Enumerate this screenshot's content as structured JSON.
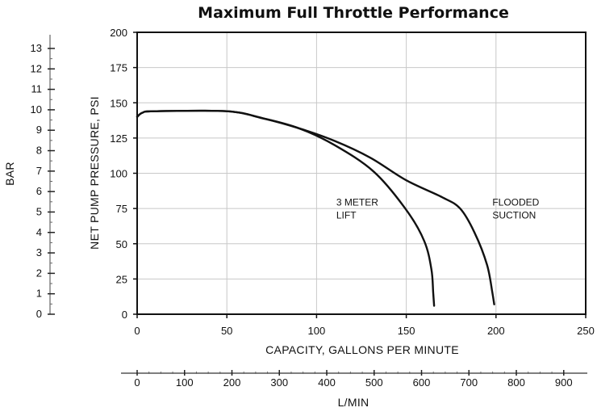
{
  "chart_data": {
    "type": "line",
    "title": "Maximum Full Throttle Performance",
    "xlabel": "CAPACITY, GALLONS PER MINUTE",
    "ylabel": "NET PUMP PRESSURE, PSI",
    "xlim": [
      0,
      250
    ],
    "ylim": [
      0,
      200
    ],
    "x_ticks": [
      0,
      50,
      100,
      150,
      200,
      250
    ],
    "y_ticks": [
      0,
      25,
      50,
      75,
      100,
      125,
      150,
      175,
      200
    ],
    "grid": true,
    "secondary_y": {
      "label": "BAR",
      "ticks": [
        0,
        1,
        2,
        3,
        4,
        5,
        6,
        7,
        8,
        9,
        10,
        11,
        12,
        13
      ]
    },
    "secondary_x": {
      "label": "L/MIN",
      "ticks": [
        0,
        100,
        200,
        300,
        400,
        500,
        600,
        700,
        800,
        900
      ]
    },
    "series": [
      {
        "name": "3 METER LIFT",
        "label_lines": [
          "3 METER",
          "LIFT"
        ],
        "x": [
          0,
          3,
          10,
          50,
          70,
          90,
          110,
          132,
          150,
          160,
          164,
          165,
          165.5
        ],
        "y": [
          140,
          143,
          144,
          144,
          139,
          132,
          120,
          101,
          74,
          52,
          32,
          15,
          6
        ]
      },
      {
        "name": "FLOODED SUCTION",
        "label_lines": [
          "FLOODED",
          "SUCTION"
        ],
        "x": [
          0,
          3,
          10,
          50,
          70,
          90,
          110,
          130,
          150,
          170,
          180,
          188,
          195,
          198,
          199
        ],
        "y": [
          140,
          143,
          144,
          144,
          139,
          132,
          123,
          111,
          95,
          83,
          75,
          58,
          35,
          15,
          7
        ]
      }
    ]
  }
}
